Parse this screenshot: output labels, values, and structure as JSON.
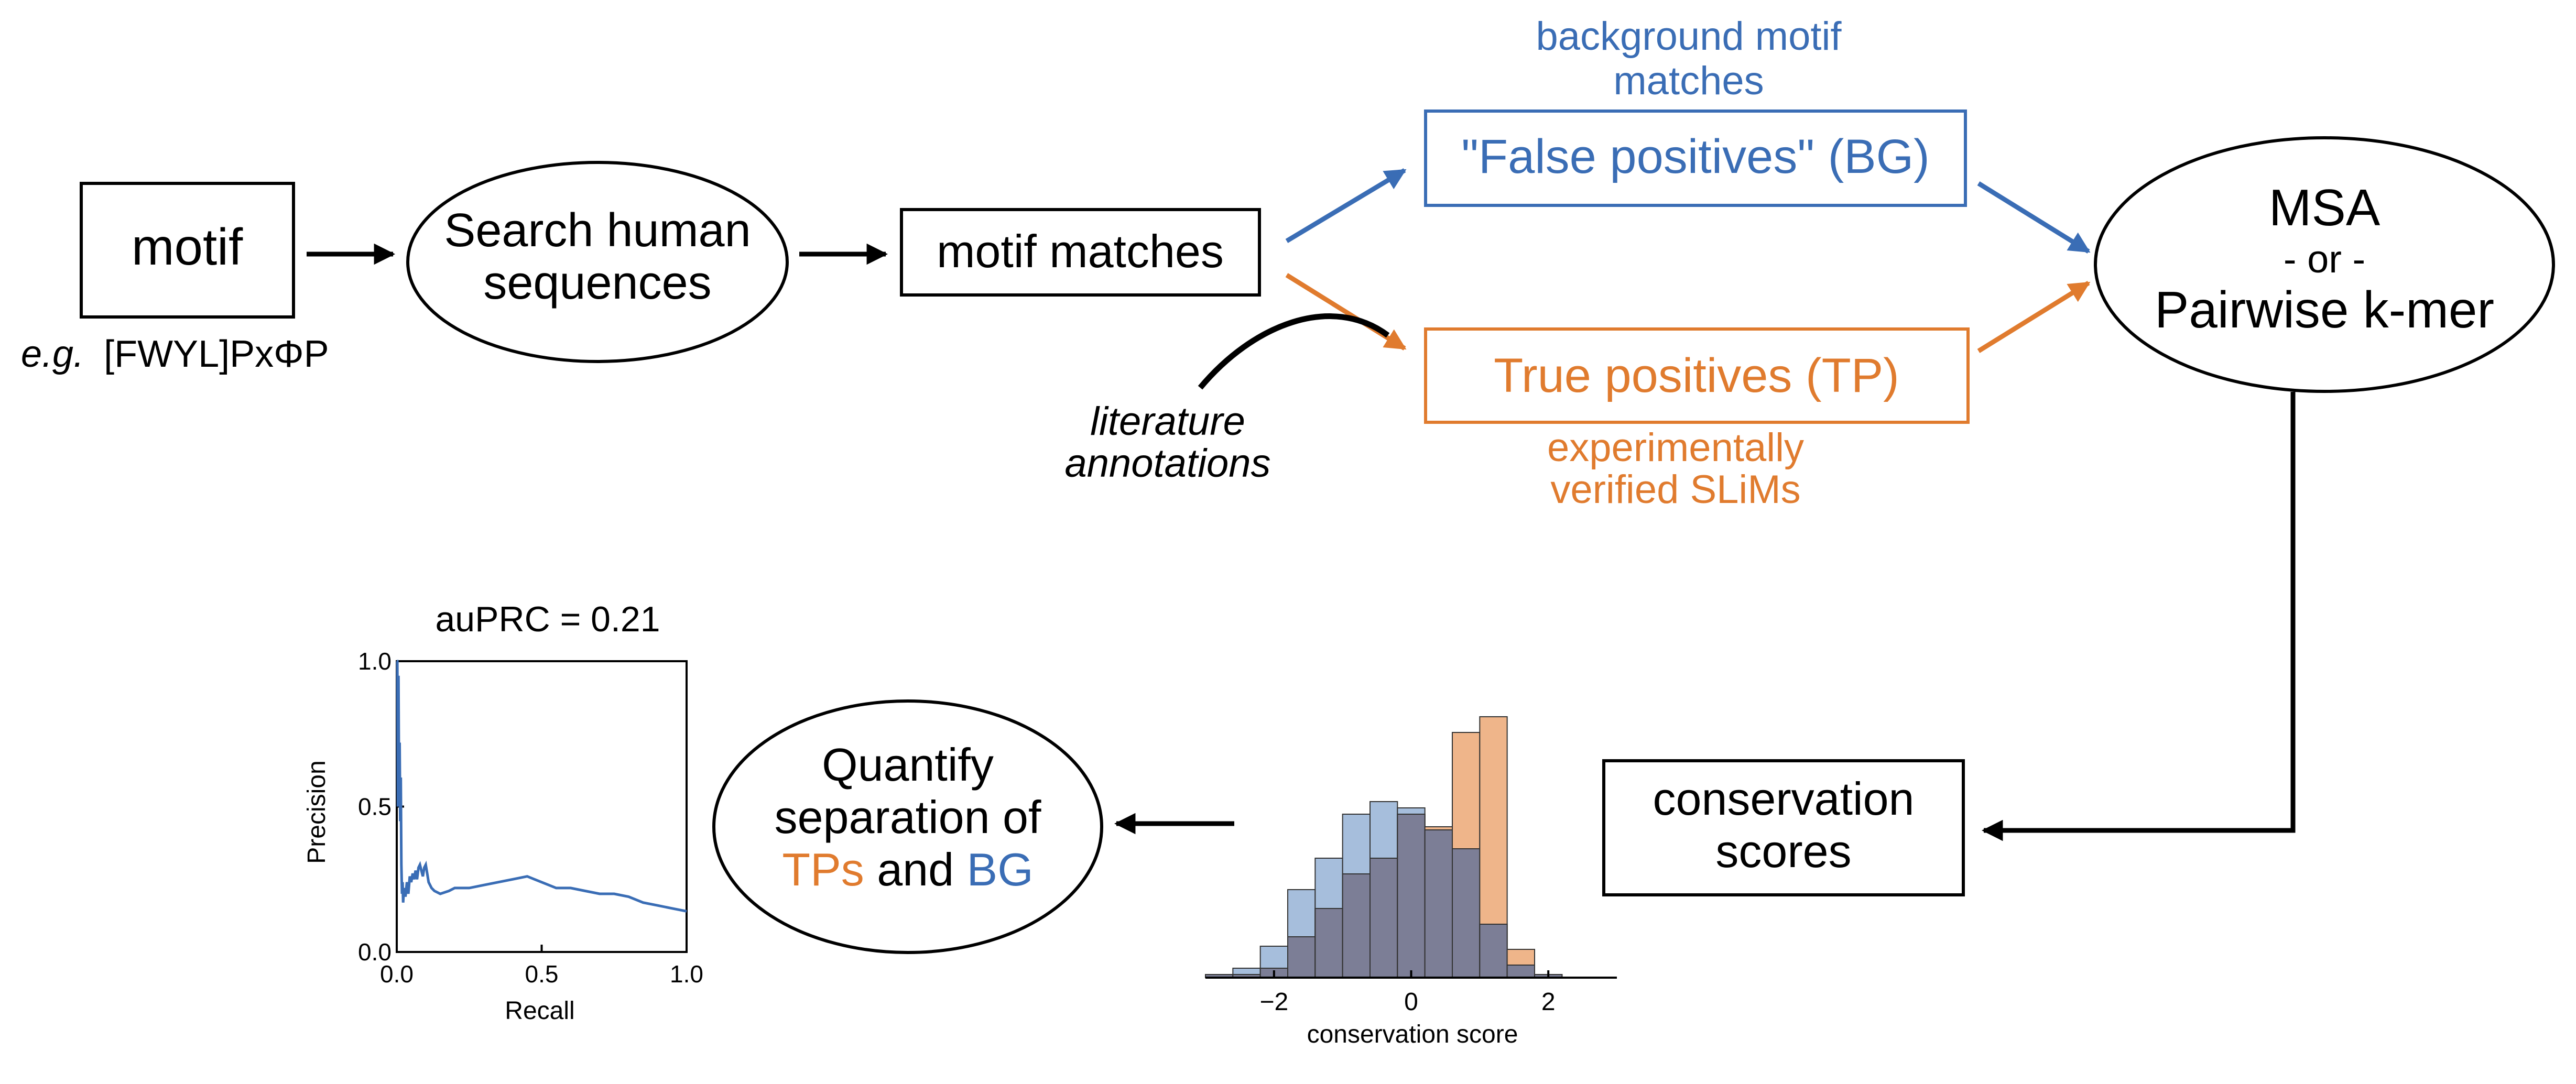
{
  "nodes": {
    "motif": "motif",
    "motif_example_prefix": "e.g.",
    "motif_example_pattern": "[FWYL]PxΦP",
    "search_line1": "Search human",
    "search_line2": "sequences",
    "motif_matches": "motif matches",
    "bg_caption_line1": "background motif",
    "bg_caption_line2": "matches",
    "false_positives": "\"False positives\" (BG)",
    "true_positives": "True positives (TP)",
    "tp_caption_line1": "experimentally",
    "tp_caption_line2": "verified SLiMs",
    "literature_line1": "literature",
    "literature_line2": "annotations",
    "msa_line1": "MSA",
    "msa_line2": "- or -",
    "msa_line3": "Pairwise k-mer",
    "conservation_line1": "conservation",
    "conservation_line2": "scores",
    "quantify_line1": "Quantify",
    "quantify_line2": "separation of",
    "quantify_tps": "TPs",
    "quantify_and": " and ",
    "quantify_bg": "BG"
  },
  "colors": {
    "tp": "#E07B2E",
    "bg": "#3A6DB5",
    "hist_tp": "#EFB58A",
    "hist_bg": "#A6BEDC",
    "hist_overlap": "#7C7E96",
    "pr_line": "#3A6DB5"
  },
  "chart_data": [
    {
      "type": "histogram",
      "xlabel": "conservation score",
      "xticks": [
        "−2",
        "0",
        "2"
      ],
      "xlim": [
        -3,
        3
      ],
      "bin_edges": [
        -3.0,
        -2.6,
        -2.2,
        -1.8,
        -1.4,
        -1.0,
        -0.6,
        -0.2,
        0.2,
        0.6,
        1.0,
        1.4,
        1.8,
        2.2
      ],
      "series": [
        {
          "name": "BG",
          "color": "#A6BEDC",
          "values": [
            1,
            3,
            10,
            28,
            38,
            52,
            56,
            54,
            47,
            41,
            17,
            4,
            1
          ]
        },
        {
          "name": "TP",
          "color": "#EFB58A",
          "values": [
            1,
            1,
            3,
            13,
            22,
            33,
            38,
            52,
            48,
            78,
            83,
            9,
            1
          ]
        }
      ]
    },
    {
      "type": "line",
      "title": "auPRC = 0.21",
      "xlabel": "Recall",
      "ylabel": "Precision",
      "xlim": [
        0,
        1
      ],
      "ylim": [
        0,
        1
      ],
      "xticks": [
        "0.0",
        "0.5",
        "1.0"
      ],
      "yticks": [
        "0.0",
        "0.5",
        "1.0"
      ],
      "series": [
        {
          "x": [
            0.0,
            0.002,
            0.004,
            0.006,
            0.008,
            0.01,
            0.012,
            0.014,
            0.016,
            0.018,
            0.02,
            0.022,
            0.025,
            0.03,
            0.035,
            0.04,
            0.045,
            0.05,
            0.055,
            0.06,
            0.065,
            0.07,
            0.075,
            0.08,
            0.085,
            0.09,
            0.095,
            0.1,
            0.105,
            0.11,
            0.12,
            0.13,
            0.15,
            0.18,
            0.2,
            0.25,
            0.3,
            0.35,
            0.4,
            0.45,
            0.5,
            0.55,
            0.6,
            0.65,
            0.7,
            0.75,
            0.8,
            0.85,
            0.9,
            0.95,
            1.0
          ],
          "y": [
            1.0,
            1.0,
            0.5,
            0.95,
            0.55,
            0.72,
            0.45,
            0.6,
            0.3,
            0.2,
            0.24,
            0.17,
            0.22,
            0.19,
            0.24,
            0.2,
            0.26,
            0.24,
            0.27,
            0.25,
            0.28,
            0.25,
            0.29,
            0.3,
            0.28,
            0.26,
            0.29,
            0.3,
            0.27,
            0.24,
            0.22,
            0.21,
            0.2,
            0.21,
            0.22,
            0.22,
            0.23,
            0.24,
            0.25,
            0.26,
            0.24,
            0.22,
            0.22,
            0.21,
            0.2,
            0.2,
            0.19,
            0.17,
            0.16,
            0.15,
            0.14
          ]
        }
      ]
    }
  ]
}
